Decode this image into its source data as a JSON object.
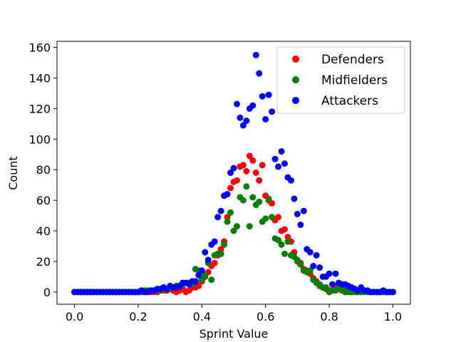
{
  "chart_data": {
    "type": "scatter",
    "title": "",
    "xlabel": "Sprint Value",
    "ylabel": "Count",
    "xlim": [
      -0.055,
      1.055
    ],
    "ylim": [
      -8,
      164
    ],
    "xticks": [
      0.0,
      0.2,
      0.4,
      0.6,
      0.8,
      1.0
    ],
    "xtick_labels": [
      "0.0",
      "0.2",
      "0.4",
      "0.6",
      "0.8",
      "1.0"
    ],
    "yticks": [
      0,
      20,
      40,
      60,
      80,
      100,
      120,
      140,
      160
    ],
    "ytick_labels": [
      "0",
      "20",
      "40",
      "60",
      "80",
      "100",
      "120",
      "140",
      "160"
    ],
    "grid": false,
    "legend_position": "top-right",
    "series": [
      {
        "name": "Defenders",
        "color": "#ff0000",
        "x": [
          0.0,
          0.01,
          0.02,
          0.03,
          0.04,
          0.05,
          0.06,
          0.07,
          0.08,
          0.09,
          0.1,
          0.11,
          0.12,
          0.13,
          0.14,
          0.15,
          0.16,
          0.17,
          0.18,
          0.19,
          0.2,
          0.21,
          0.22,
          0.23,
          0.24,
          0.25,
          0.26,
          0.27,
          0.28,
          0.29,
          0.3,
          0.31,
          0.32,
          0.33,
          0.34,
          0.35,
          0.36,
          0.37,
          0.38,
          0.39,
          0.4,
          0.41,
          0.42,
          0.43,
          0.44,
          0.45,
          0.46,
          0.47,
          0.48,
          0.49,
          0.5,
          0.51,
          0.52,
          0.53,
          0.54,
          0.55,
          0.56,
          0.57,
          0.58,
          0.59,
          0.6,
          0.61,
          0.62,
          0.63,
          0.64,
          0.65,
          0.66,
          0.67,
          0.68,
          0.69,
          0.7,
          0.71,
          0.72,
          0.73,
          0.74,
          0.75,
          0.76,
          0.77,
          0.78,
          0.79,
          0.8,
          0.81,
          0.82,
          0.83,
          0.84,
          0.85,
          0.86,
          0.87,
          0.88,
          0.89,
          0.9,
          0.91,
          0.92,
          0.93,
          0.94,
          0.95,
          0.96,
          0.97,
          0.98,
          0.99,
          1.0
        ],
        "y": [
          0,
          0,
          0,
          0,
          0,
          0,
          0,
          0,
          0,
          0,
          0,
          0,
          0,
          0,
          0,
          0,
          0,
          0,
          0,
          0,
          0,
          0,
          0,
          0,
          0,
          0,
          0,
          1,
          1,
          1,
          2,
          1,
          0,
          1,
          2,
          0,
          1,
          3,
          3,
          4,
          7,
          10,
          13,
          17,
          19,
          24,
          28,
          33,
          49,
          68,
          72,
          73,
          82,
          83,
          79,
          89,
          86,
          78,
          73,
          83,
          63,
          60,
          58,
          47,
          49,
          40,
          41,
          36,
          33,
          26,
          20,
          19,
          15,
          14,
          12,
          9,
          7,
          4,
          3,
          2,
          1,
          1,
          4,
          2,
          1,
          1,
          1,
          0,
          0,
          0,
          0,
          0,
          0,
          0,
          0,
          0,
          0,
          0,
          0,
          0,
          0
        ]
      },
      {
        "name": "Midfielders",
        "color": "#008000",
        "x": [
          0.0,
          0.01,
          0.02,
          0.03,
          0.04,
          0.05,
          0.06,
          0.07,
          0.08,
          0.09,
          0.1,
          0.11,
          0.12,
          0.13,
          0.14,
          0.15,
          0.16,
          0.17,
          0.18,
          0.19,
          0.2,
          0.21,
          0.22,
          0.23,
          0.24,
          0.25,
          0.26,
          0.27,
          0.28,
          0.29,
          0.3,
          0.31,
          0.32,
          0.33,
          0.34,
          0.35,
          0.36,
          0.37,
          0.38,
          0.39,
          0.4,
          0.41,
          0.42,
          0.43,
          0.44,
          0.45,
          0.46,
          0.47,
          0.48,
          0.49,
          0.5,
          0.51,
          0.52,
          0.53,
          0.54,
          0.55,
          0.56,
          0.57,
          0.58,
          0.59,
          0.6,
          0.61,
          0.62,
          0.63,
          0.64,
          0.65,
          0.66,
          0.67,
          0.68,
          0.69,
          0.7,
          0.71,
          0.72,
          0.73,
          0.74,
          0.75,
          0.76,
          0.77,
          0.78,
          0.79,
          0.8,
          0.81,
          0.82,
          0.83,
          0.84,
          0.85,
          0.86,
          0.87,
          0.88,
          0.89,
          0.9,
          0.91,
          0.92,
          0.93,
          0.94,
          0.95,
          0.96,
          0.97,
          0.98,
          0.99,
          1.0
        ],
        "y": [
          0,
          0,
          0,
          0,
          0,
          0,
          0,
          0,
          0,
          0,
          0,
          0,
          0,
          0,
          0,
          0,
          0,
          0,
          0,
          0,
          0,
          0,
          1,
          1,
          1,
          1,
          1,
          1,
          2,
          2,
          2,
          3,
          4,
          4,
          5,
          6,
          6,
          5,
          15,
          14,
          8,
          11,
          19,
          8,
          24,
          25,
          25,
          31,
          46,
          52,
          40,
          43,
          62,
          60,
          69,
          43,
          62,
          57,
          59,
          46,
          48,
          61,
          49,
          35,
          34,
          31,
          25,
          33,
          24,
          23,
          21,
          18,
          14,
          13,
          14,
          8,
          6,
          5,
          3,
          3,
          0,
          1,
          1,
          2,
          2,
          0,
          0,
          0,
          0,
          0,
          0,
          0,
          0,
          0,
          0,
          0,
          0,
          0,
          0,
          0,
          0
        ]
      },
      {
        "name": "Attackers",
        "color": "#0000ff",
        "x": [
          0.0,
          0.01,
          0.02,
          0.03,
          0.04,
          0.05,
          0.06,
          0.07,
          0.08,
          0.09,
          0.1,
          0.11,
          0.12,
          0.13,
          0.14,
          0.15,
          0.16,
          0.17,
          0.18,
          0.19,
          0.2,
          0.21,
          0.22,
          0.23,
          0.24,
          0.25,
          0.26,
          0.27,
          0.28,
          0.29,
          0.3,
          0.31,
          0.32,
          0.33,
          0.34,
          0.35,
          0.36,
          0.37,
          0.38,
          0.39,
          0.4,
          0.41,
          0.42,
          0.43,
          0.44,
          0.45,
          0.46,
          0.47,
          0.48,
          0.49,
          0.5,
          0.51,
          0.52,
          0.53,
          0.54,
          0.55,
          0.56,
          0.57,
          0.58,
          0.59,
          0.6,
          0.61,
          0.62,
          0.63,
          0.64,
          0.65,
          0.66,
          0.67,
          0.68,
          0.69,
          0.7,
          0.71,
          0.72,
          0.73,
          0.74,
          0.75,
          0.76,
          0.77,
          0.78,
          0.79,
          0.8,
          0.81,
          0.82,
          0.83,
          0.84,
          0.85,
          0.86,
          0.87,
          0.88,
          0.89,
          0.9,
          0.91,
          0.92,
          0.93,
          0.94,
          0.95,
          0.96,
          0.97,
          0.98,
          0.99,
          1.0
        ],
        "y": [
          0,
          0,
          0,
          0,
          0,
          0,
          0,
          0,
          0,
          0,
          0,
          0,
          0,
          0,
          0,
          0,
          0,
          0,
          0,
          0,
          0,
          1,
          0,
          0,
          1,
          1,
          2,
          2,
          3,
          2,
          4,
          3,
          3,
          4,
          6,
          6,
          5,
          7,
          7,
          11,
          14,
          26,
          21,
          31,
          33,
          49,
          53,
          63,
          64,
          78,
          81,
          123,
          114,
          109,
          112,
          120,
          122,
          155,
          143,
          128,
          113,
          129,
          118,
          87,
          82,
          92,
          84,
          75,
          73,
          61,
          51,
          44,
          53,
          28,
          26,
          17,
          24,
          16,
          10,
          10,
          12,
          5,
          12,
          6,
          5,
          5,
          4,
          3,
          2,
          1,
          3,
          1,
          1,
          0,
          0,
          0,
          0,
          1,
          0,
          0,
          0
        ]
      }
    ]
  }
}
